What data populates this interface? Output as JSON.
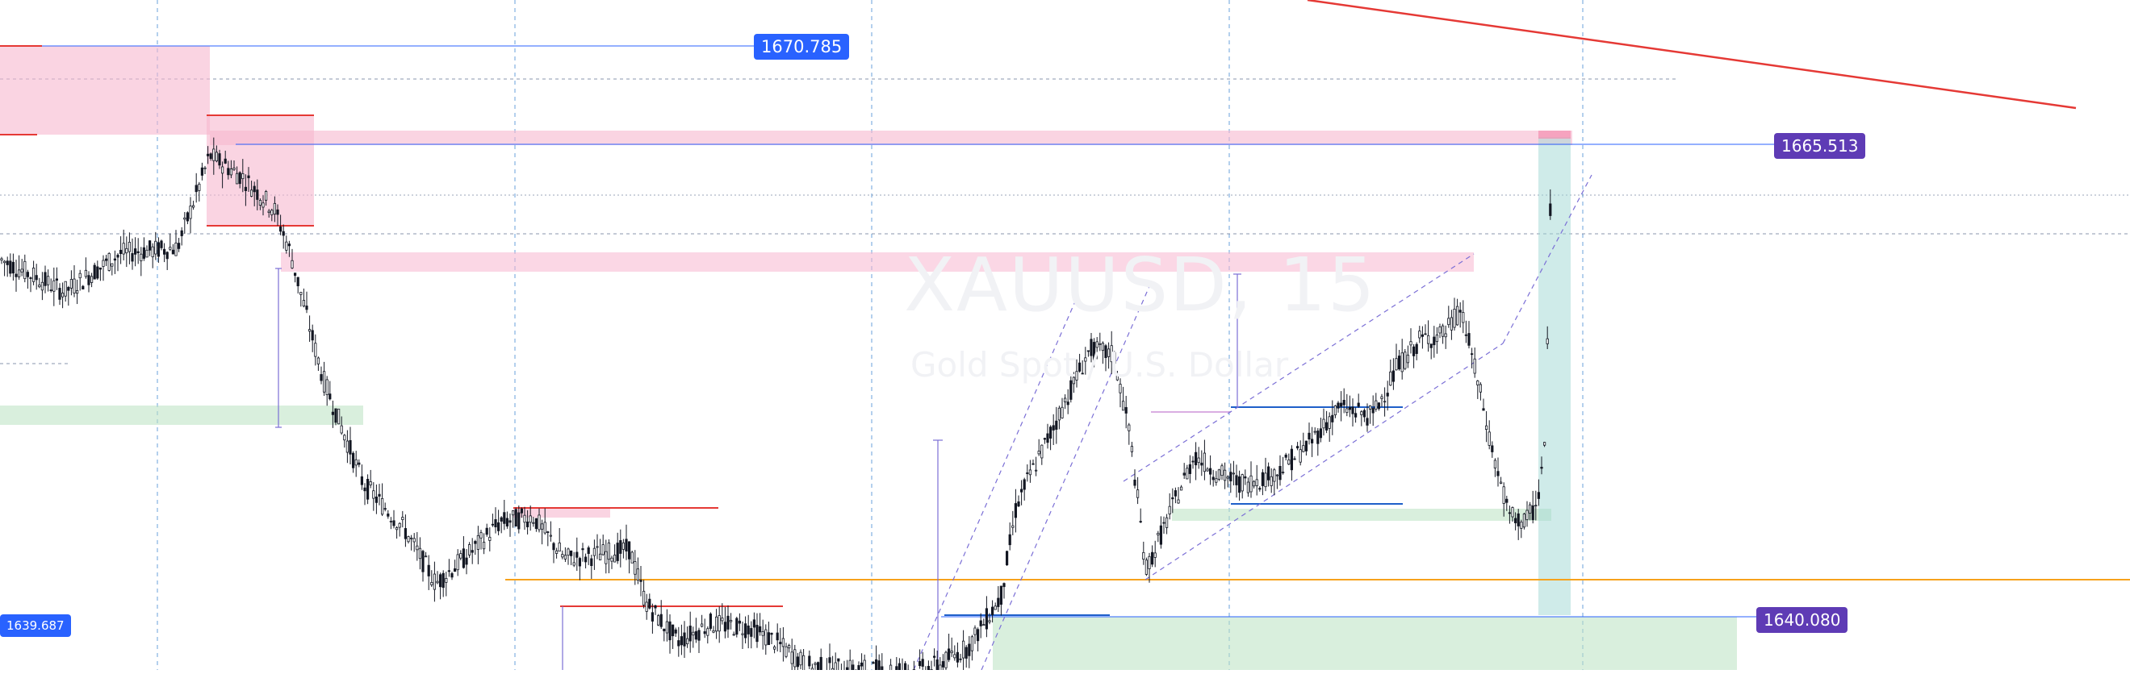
{
  "watermark": {
    "symbol": "XAUUSD, 15",
    "description": "Gold Spot / U.S. Dollar"
  },
  "price_labels": {
    "high_label": "1670.785",
    "mid_label": "1665.513",
    "low_label": "1640.080",
    "left_label": "1639.687"
  },
  "colors": {
    "candle": "#131722",
    "grid": "#6aa1db",
    "supply_zone": "#f7b7cf",
    "demand_zone": "#b9e2c1",
    "target_zone": "#9fd8d3",
    "red_line": "#e53935",
    "orange_line": "#f7a21b",
    "blue_line": "#1e5fc9",
    "channel": "#7b6fd6",
    "tag_blue": "#2962ff",
    "tag_purple": "#5e3bb5"
  },
  "chart_data": {
    "type": "candlestick",
    "symbol": "XAUUSD",
    "timeframe": "15",
    "ylim": [
      1637.8,
      1672.7
    ],
    "marked_levels": [
      1670.785,
      1665.513,
      1640.08,
      1639.687
    ],
    "price_path": [
      [
        0,
        1659.2
      ],
      [
        80,
        1657.5
      ],
      [
        150,
        1659.5
      ],
      [
        220,
        1659.8
      ],
      [
        260,
        1664.6
      ],
      [
        300,
        1663.5
      ],
      [
        340,
        1661.8
      ],
      [
        360,
        1659.5
      ],
      [
        400,
        1653.0
      ],
      [
        450,
        1647.5
      ],
      [
        500,
        1645.2
      ],
      [
        540,
        1642.3
      ],
      [
        580,
        1643.8
      ],
      [
        620,
        1645.5
      ],
      [
        660,
        1645.8
      ],
      [
        700,
        1643.6
      ],
      [
        740,
        1643.8
      ],
      [
        780,
        1644.1
      ],
      [
        800,
        1641.3
      ],
      [
        840,
        1639.3
      ],
      [
        880,
        1640.2
      ],
      [
        930,
        1640.0
      ],
      [
        960,
        1639.3
      ],
      [
        1000,
        1638.0
      ],
      [
        1060,
        1637.8
      ],
      [
        1140,
        1637.8
      ],
      [
        1160,
        1638.0
      ],
      [
        1200,
        1639.0
      ],
      [
        1240,
        1641.6
      ],
      [
        1260,
        1646.5
      ],
      [
        1300,
        1650.0
      ],
      [
        1350,
        1654.5
      ],
      [
        1380,
        1654.2
      ],
      [
        1400,
        1650.0
      ],
      [
        1420,
        1643.0
      ],
      [
        1450,
        1646.0
      ],
      [
        1480,
        1649.0
      ],
      [
        1510,
        1648.0
      ],
      [
        1540,
        1647.5
      ],
      [
        1580,
        1648.0
      ],
      [
        1620,
        1649.5
      ],
      [
        1660,
        1651.5
      ],
      [
        1700,
        1651.0
      ],
      [
        1730,
        1653.5
      ],
      [
        1760,
        1655.0
      ],
      [
        1790,
        1655.3
      ],
      [
        1810,
        1656.6
      ],
      [
        1830,
        1653.0
      ],
      [
        1850,
        1649.0
      ],
      [
        1870,
        1645.8
      ],
      [
        1890,
        1645.5
      ],
      [
        1905,
        1646.5
      ],
      [
        1915,
        1650.0
      ],
      [
        1922,
        1664.5
      ]
    ]
  }
}
